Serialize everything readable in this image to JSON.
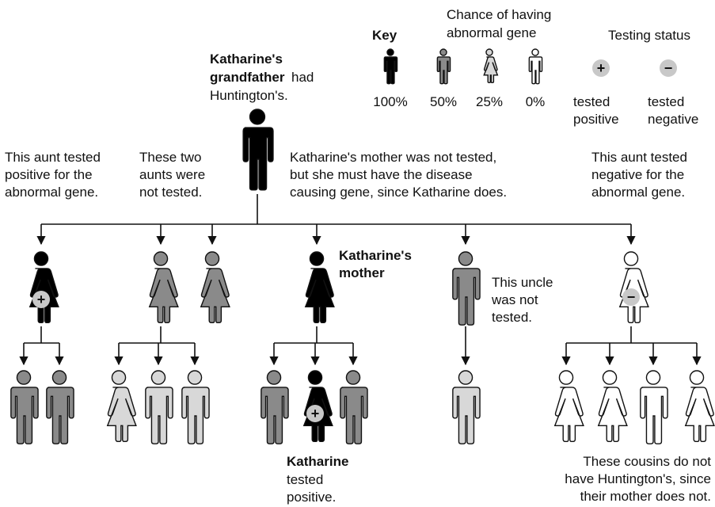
{
  "key": {
    "title": "Key",
    "chance_heading": [
      "Chance of having",
      "abnormal gene"
    ],
    "levels": [
      "100%",
      "50%",
      "25%",
      "0%"
    ],
    "testing_heading": "Testing status",
    "positive_symbol": "+",
    "negative_symbol": "−",
    "positive_label": [
      "tested",
      "positive"
    ],
    "negative_label": [
      "tested",
      "negative"
    ]
  },
  "notes": {
    "grandfather_bold": [
      "Katharine's",
      "grandfather"
    ],
    "grandfather_rest": [
      "had",
      "Huntington's."
    ],
    "aunt_positive": [
      "This aunt tested",
      "positive for the",
      "abnormal gene."
    ],
    "two_aunts": [
      "These two",
      "aunts were",
      "not tested."
    ],
    "mother_note": [
      "Katharine's mother was not tested,",
      "but she must have the disease",
      "causing gene, since Katharine does."
    ],
    "aunt_negative": [
      "This aunt tested",
      "negative for the",
      "abnormal gene."
    ],
    "mother_label": [
      "Katharine's",
      "mother"
    ],
    "uncle": [
      "This uncle",
      "was not",
      "tested."
    ],
    "katharine_bold": "Katharine",
    "katharine_rest": [
      "tested",
      "positive."
    ],
    "cousins": [
      "These cousins do not",
      "have Huntington's, since",
      "their mother does not."
    ]
  }
}
